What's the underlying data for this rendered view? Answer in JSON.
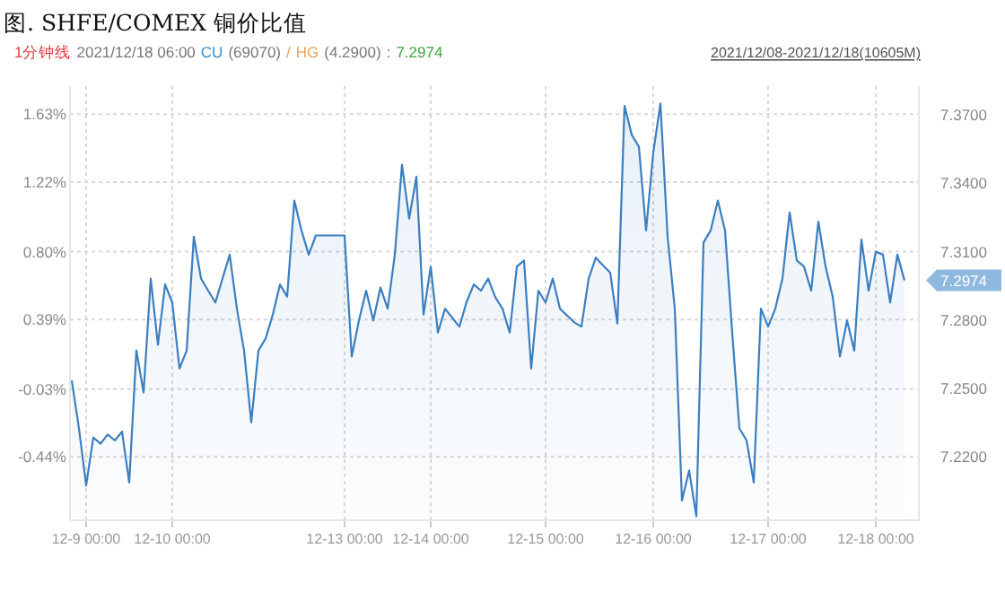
{
  "chart_data": {
    "type": "area",
    "title": "图. SHFE/COMEX 铜价比值",
    "annotations": [
      "1分钟线",
      "2021/12/18 06:00",
      "CU",
      "(69070)",
      "/",
      "HG",
      "(4.2900)",
      ":",
      "7.2974",
      "2021/12/08-2021/12/18(10605M)",
      "7.2974"
    ],
    "categories": [
      null,
      null,
      "12-9 00:00",
      null,
      null,
      null,
      null,
      null,
      null,
      null,
      null,
      null,
      null,
      null,
      "12-10 00:00",
      null,
      null,
      null,
      null,
      null,
      null,
      null,
      null,
      null,
      null,
      null,
      null,
      null,
      null,
      null,
      null,
      null,
      null,
      null,
      null,
      null,
      null,
      null,
      "12-13 00:00",
      null,
      null,
      null,
      null,
      null,
      null,
      null,
      null,
      null,
      null,
      null,
      "12-14 00:00",
      null,
      null,
      null,
      null,
      null,
      null,
      null,
      null,
      null,
      null,
      null,
      null,
      null,
      null,
      null,
      "12-15 00:00",
      null,
      null,
      null,
      null,
      null,
      null,
      null,
      null,
      null,
      null,
      null,
      null,
      null,
      null,
      "12-16 00:00",
      null,
      null,
      null,
      null,
      null,
      null,
      null,
      null,
      null,
      null,
      null,
      null,
      null,
      null,
      null,
      "12-17 00:00",
      null,
      null,
      null,
      null,
      null,
      null,
      null,
      null,
      null,
      null,
      null,
      null,
      null,
      null,
      "12-18 00:00",
      null,
      null,
      null,
      null
    ],
    "series": [
      {
        "color": "#3c7fc0",
        "axis": "y2",
        "values": [
          7.2535,
          7.2325,
          7.2075,
          7.2285,
          7.2258,
          7.2298,
          7.2272,
          7.2311,
          7.2088,
          7.2666,
          7.2483,
          7.2982,
          7.2692,
          7.2956,
          7.2877,
          7.2587,
          7.2666,
          7.3166,
          7.2982,
          7.2929,
          7.2877,
          7.2982,
          7.3087,
          7.285,
          7.2666,
          7.2351,
          7.2666,
          7.2719,
          7.2824,
          7.2956,
          7.2903,
          7.3324,
          7.3193,
          7.3087,
          7.3171,
          7.3171,
          7.3171,
          7.3171,
          7.3171,
          7.264,
          7.2798,
          7.2929,
          7.2798,
          7.2943,
          7.285,
          7.3087,
          7.3481,
          7.3245,
          7.3429,
          7.2824,
          7.3035,
          7.2745,
          7.285,
          7.281,
          7.2771,
          7.288,
          7.2956,
          7.2929,
          7.2982,
          7.29,
          7.285,
          7.2745,
          7.3035,
          7.3061,
          7.2587,
          7.2929,
          7.2877,
          7.2982,
          7.285,
          7.282,
          7.279,
          7.2771,
          7.2982,
          7.3074,
          7.304,
          7.3008,
          7.2785,
          7.3739,
          7.3613,
          7.356,
          7.3193,
          7.3534,
          7.375,
          7.3166,
          7.285,
          7.2009,
          7.214,
          7.194,
          7.314,
          7.3193,
          7.3324,
          7.3193,
          7.2745,
          7.2325,
          7.2272,
          7.2088,
          7.285,
          7.2771,
          7.285,
          7.2982,
          7.3272,
          7.3061,
          7.3035,
          7.2929,
          7.3232,
          7.3035,
          7.2903,
          7.264,
          7.2798,
          7.2666,
          7.3153,
          7.2929,
          7.31,
          7.3087,
          7.2877,
          7.3087,
          7.2974
        ]
      }
    ],
    "ylim": [
      -0.823,
      1.8
    ],
    "yticks": [
      {
        "value": -0.44,
        "label": "-0.44%"
      },
      {
        "value": -0.03,
        "label": "-0.03%"
      },
      {
        "value": 0.39,
        "label": "0.39%"
      },
      {
        "value": 0.8,
        "label": "0.80%"
      },
      {
        "value": 1.22,
        "label": "1.22%"
      },
      {
        "value": 1.63,
        "label": "1.63%"
      }
    ],
    "y2lim": [
      7.1922,
      7.3826
    ],
    "y2ticks": [
      {
        "value": 7.22,
        "label": "7.2200"
      },
      {
        "value": 7.25,
        "label": "7.2500"
      },
      {
        "value": 7.28,
        "label": "7.2800"
      },
      {
        "value": 7.31,
        "label": "7.3100"
      },
      {
        "value": 7.34,
        "label": "7.3400"
      },
      {
        "value": 7.37,
        "label": "7.3700"
      }
    ],
    "grid": true
  }
}
